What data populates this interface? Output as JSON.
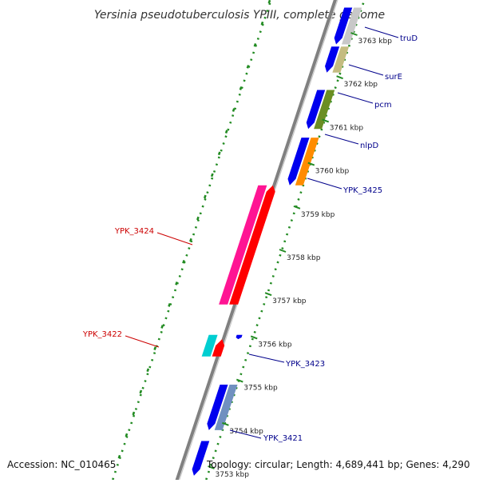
{
  "title": "Yersinia pseudotuberculosis YPIII, complete genome",
  "footer": {
    "accession": "Accession: NC_010465",
    "topology": "Topology: circular; Length: 4,689,441 bp; Genes: 4,290"
  },
  "colors": {
    "backbone": "#808080",
    "forward_label": "#00008b",
    "reverse_label": "#cc0000",
    "ruler_dots": "#228b22"
  },
  "ticks": [
    {
      "label": "3763 kbp",
      "pos": 3763
    },
    {
      "label": "3762 kbp",
      "pos": 3762
    },
    {
      "label": "3761 kbp",
      "pos": 3761
    },
    {
      "label": "3760 kbp",
      "pos": 3760
    },
    {
      "label": "3759 kbp",
      "pos": 3759
    },
    {
      "label": "3758 kbp",
      "pos": 3758
    },
    {
      "label": "3757 kbp",
      "pos": 3757
    },
    {
      "label": "3756 kbp",
      "pos": 3756
    },
    {
      "label": "3755 kbp",
      "pos": 3755
    },
    {
      "label": "3754 kbp",
      "pos": 3754
    },
    {
      "label": "3753 kbp",
      "pos": 3753
    }
  ],
  "gene_labels": [
    {
      "label": "truD",
      "strand": "forward",
      "color": "#00008b"
    },
    {
      "label": "surE",
      "strand": "forward",
      "color": "#00008b"
    },
    {
      "label": "pcm",
      "strand": "forward",
      "color": "#00008b"
    },
    {
      "label": "nlpD",
      "strand": "forward",
      "color": "#00008b"
    },
    {
      "label": "YPK_3425",
      "strand": "forward",
      "color": "#00008b"
    },
    {
      "label": "YPK_3424",
      "strand": "reverse",
      "color": "#cc0000"
    },
    {
      "label": "YPK_3423",
      "strand": "forward",
      "color": "#00008b"
    },
    {
      "label": "YPK_3422",
      "strand": "reverse",
      "color": "#cc0000"
    },
    {
      "label": "YPK_3421",
      "strand": "forward",
      "color": "#00008b"
    }
  ],
  "features": [
    {
      "track": "fwd-cds",
      "start": 3763.6,
      "end": 3762.75,
      "color": "#0000ee"
    },
    {
      "track": "fwd-gene",
      "start": 3763.6,
      "end": 3762.75,
      "color": "#c8c8c8"
    },
    {
      "track": "fwd-cds",
      "start": 3762.7,
      "end": 3762.1,
      "color": "#0000ee"
    },
    {
      "track": "fwd-gene",
      "start": 3762.7,
      "end": 3762.1,
      "color": "#c4bc80"
    },
    {
      "track": "fwd-cds",
      "start": 3761.7,
      "end": 3760.8,
      "color": "#0000ee"
    },
    {
      "track": "fwd-gene",
      "start": 3761.7,
      "end": 3760.8,
      "color": "#6b8e23"
    },
    {
      "track": "fwd-cds",
      "start": 3760.6,
      "end": 3759.5,
      "color": "#0000ee"
    },
    {
      "track": "fwd-gene",
      "start": 3760.6,
      "end": 3759.5,
      "color": "#ff8c00"
    },
    {
      "track": "rev-gene",
      "start": 3759.5,
      "end": 3756.75,
      "color": "#ff1493"
    },
    {
      "track": "rev-cds",
      "start": 3759.5,
      "end": 3756.75,
      "color": "#ff0000"
    },
    {
      "track": "fwd-small",
      "start": 3756.05,
      "end": 3755.95,
      "color": "#0000ee"
    },
    {
      "track": "rev-gene",
      "start": 3756.05,
      "end": 3755.55,
      "color": "#00ced1"
    },
    {
      "track": "rev-cds",
      "start": 3755.95,
      "end": 3755.55,
      "color": "#ff0000"
    },
    {
      "track": "fwd-cds",
      "start": 3754.9,
      "end": 3753.85,
      "color": "#0000ee"
    },
    {
      "track": "fwd-gene",
      "start": 3754.9,
      "end": 3753.85,
      "color": "#7090c0"
    },
    {
      "track": "fwd-cds",
      "start": 3753.6,
      "end": 3752.8,
      "color": "#0000ee"
    }
  ]
}
